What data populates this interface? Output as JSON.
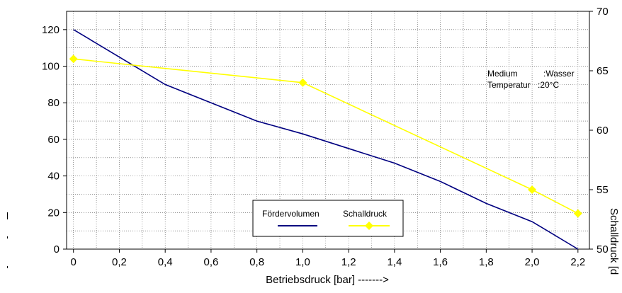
{
  "chart_data": {
    "type": "line",
    "title": "",
    "xlabel": "Betriebsdruck [bar] ------->",
    "ylabel": "",
    "y2label": "Schalldruck [d",
    "x_ticks": [
      "0",
      "0,2",
      "0,4",
      "0,6",
      "0,8",
      "1,0",
      "1,2",
      "1,4",
      "1,6",
      "1,8",
      "2,0",
      "2,2"
    ],
    "x_ticks_values": [
      0,
      0.2,
      0.4,
      0.6,
      0.8,
      1.0,
      1.2,
      1.4,
      1.6,
      1.8,
      2.0,
      2.2
    ],
    "xlim": [
      -0.03,
      2.25
    ],
    "ylim": [
      0,
      130
    ],
    "y_ticks": [
      0,
      20,
      40,
      60,
      80,
      100,
      120
    ],
    "y2lim": [
      50,
      70
    ],
    "y2_ticks": [
      50,
      55,
      60,
      65,
      70
    ],
    "grid": true,
    "legend_placement": "bottom-center",
    "series": [
      {
        "name": "Fördervolumen",
        "axis": "left",
        "color": "#000080",
        "marker": "none",
        "x": [
          0,
          0.4,
          0.8,
          1.0,
          1.4,
          1.6,
          1.8,
          2.0,
          2.2
        ],
        "y": [
          120,
          90,
          70,
          63,
          47,
          37,
          25,
          15,
          0
        ]
      },
      {
        "name": "Schalldruck",
        "axis": "right",
        "color": "#ffff00",
        "marker": "diamond",
        "x": [
          0,
          1.0,
          2.0,
          2.2
        ],
        "y": [
          66,
          64,
          55,
          53
        ]
      }
    ],
    "annotations": [
      {
        "label": "Medium",
        "value": ":Wasser"
      },
      {
        "label": "Temperatur",
        "value": ":20°C"
      }
    ]
  }
}
